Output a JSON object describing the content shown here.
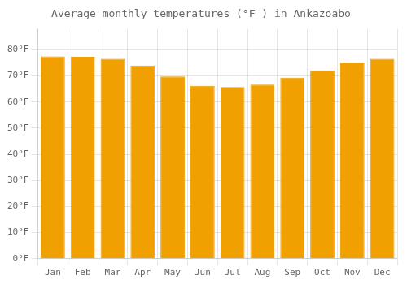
{
  "chart_data": {
    "type": "bar",
    "title": "Average monthly temperatures (°F ) in Ankazoabo",
    "categories": [
      "Jan",
      "Feb",
      "Mar",
      "Apr",
      "May",
      "Jun",
      "Jul",
      "Aug",
      "Sep",
      "Oct",
      "Nov",
      "Dec"
    ],
    "values": [
      77.5,
      77.3,
      76.5,
      74.0,
      69.8,
      66.2,
      65.7,
      66.7,
      69.3,
      72.1,
      74.8,
      76.5
    ],
    "color": "#F0A000",
    "ylim": [
      0,
      88
    ],
    "yticks": [
      {
        "value": 0,
        "label": "0°F"
      },
      {
        "value": 10,
        "label": "10°F"
      },
      {
        "value": 20,
        "label": "20°F"
      },
      {
        "value": 30,
        "label": "30°F"
      },
      {
        "value": 40,
        "label": "40°F"
      },
      {
        "value": 50,
        "label": "50°F"
      },
      {
        "value": 60,
        "label": "60°F"
      },
      {
        "value": 70,
        "label": "70°F"
      },
      {
        "value": 80,
        "label": "80°F"
      }
    ],
    "grid": true
  }
}
